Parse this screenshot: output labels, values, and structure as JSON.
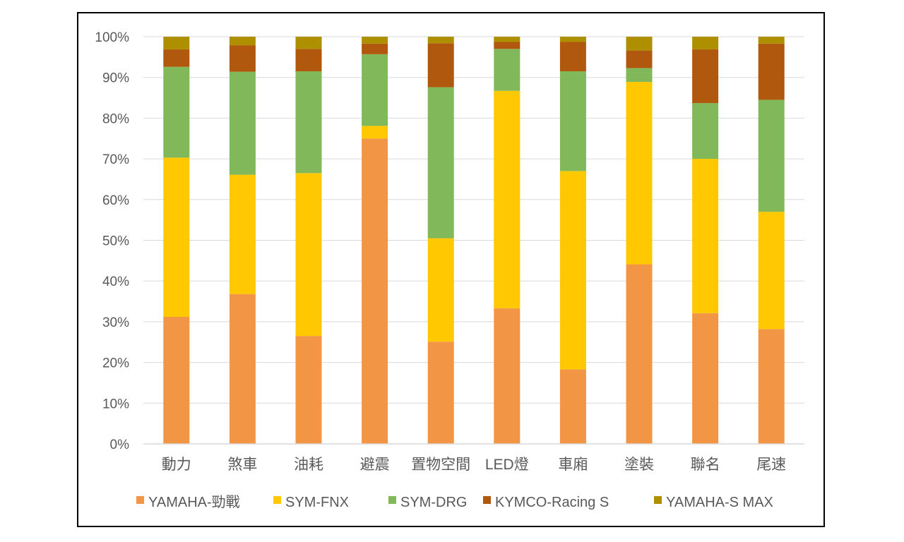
{
  "chart_data": {
    "type": "bar",
    "stacked": true,
    "normalized": true,
    "categories": [
      "動力",
      "煞車",
      "油耗",
      "避震",
      "置物空間",
      "LED燈",
      "車廂",
      "塗裝",
      "聯名",
      "尾速"
    ],
    "series": [
      {
        "name": "YAMAHA-勁戰",
        "color": "#F29544",
        "values": [
          31.2,
          36.8,
          26.5,
          75.0,
          25.1,
          33.3,
          18.3,
          44.1,
          32.1,
          28.2
        ]
      },
      {
        "name": "SYM-FNX",
        "color": "#FFC800",
        "values": [
          39.1,
          29.3,
          40.0,
          3.1,
          25.4,
          53.4,
          48.7,
          44.8,
          37.9,
          28.8
        ]
      },
      {
        "name": "SYM-DRG",
        "color": "#80B85A",
        "values": [
          22.3,
          25.3,
          25.0,
          17.6,
          37.1,
          10.3,
          24.5,
          3.4,
          13.7,
          27.5
        ]
      },
      {
        "name": "KYMCO-Racing S",
        "color": "#B0580D",
        "values": [
          4.3,
          6.5,
          5.5,
          2.6,
          10.8,
          1.7,
          7.2,
          4.3,
          13.2,
          13.8
        ]
      },
      {
        "name": "YAMAHA-S MAX",
        "color": "#AD8F00",
        "values": [
          3.1,
          2.1,
          3.0,
          1.7,
          1.6,
          1.3,
          1.3,
          3.4,
          3.1,
          1.7
        ]
      }
    ],
    "ylim": [
      0,
      100
    ],
    "yticks": [
      "0%",
      "10%",
      "20%",
      "30%",
      "40%",
      "50%",
      "60%",
      "70%",
      "80%",
      "90%",
      "100%"
    ],
    "grid": true,
    "legend_position": "bottom",
    "title": "",
    "xlabel": "",
    "ylabel": ""
  }
}
